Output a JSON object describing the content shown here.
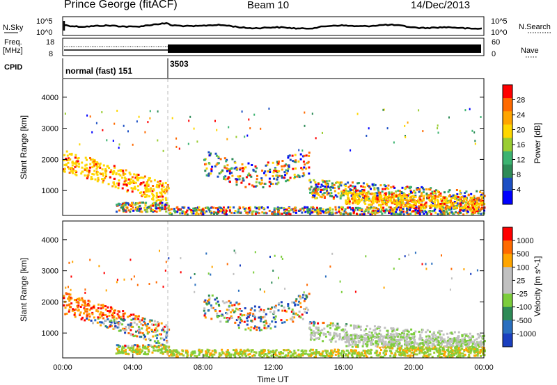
{
  "header": {
    "title": "Prince George (fitACF)",
    "beam": "Beam 10",
    "date": "14/Dec/2013"
  },
  "aux": {
    "nsky_label": "N.Sky",
    "nsearch_label": "N.Search",
    "freq_label_1": "Freq.",
    "freq_label_2": "[MHz]",
    "nave_label": "Nave",
    "cpid_label": "CPID",
    "noise_ticks": [
      "10^5",
      "10^0"
    ],
    "freq_ticks": [
      "18",
      "8"
    ],
    "nave_ticks": [
      "60",
      "0"
    ],
    "cpid_segments": [
      {
        "label": "normal (fast) 151",
        "start_hour": 0,
        "end_hour": 6
      },
      {
        "label": "3503",
        "start_hour": 6,
        "end_hour": 24
      }
    ]
  },
  "chart_data": [
    {
      "type": "heatmap",
      "name": "power",
      "ylabel": "Slant Range [km]",
      "xlim": [
        0,
        24
      ],
      "ylim": [
        200,
        4600
      ],
      "yticks": [
        1000,
        2000,
        3000,
        4000
      ],
      "colorbar_label": "Power [dB]",
      "colorbar_ticks": [
        "4",
        "8",
        "12",
        "16",
        "20",
        "24",
        "28"
      ],
      "colors": [
        "#0000ff",
        "#1c4fc4",
        "#2e8b57",
        "#3cb371",
        "#9acd32",
        "#ffd700",
        "#ffa500",
        "#ff6a00",
        "#ff0000"
      ]
    },
    {
      "type": "heatmap",
      "name": "velocity",
      "ylabel": "Slant Range [km]",
      "xlabel": "Time UT",
      "xlim": [
        0,
        24
      ],
      "ylim": [
        200,
        4600
      ],
      "yticks": [
        1000,
        2000,
        3000,
        4000
      ],
      "xticks": [
        "00:00",
        "04:00",
        "08:00",
        "12:00",
        "16:00",
        "20:00",
        "00:00"
      ],
      "colorbar_label": "Velocity [m s^-1]",
      "colorbar_ticks": [
        "1000",
        "500",
        "100",
        "25",
        "-25",
        "-100",
        "-500",
        "-1000"
      ],
      "colors": [
        "#1a3fbf",
        "#2a6fbf",
        "#2e8b57",
        "#7ccd3c",
        "#c0c0c0",
        "#c0c0c0",
        "#ffa500",
        "#ff6a00",
        "#ff0000"
      ]
    }
  ]
}
